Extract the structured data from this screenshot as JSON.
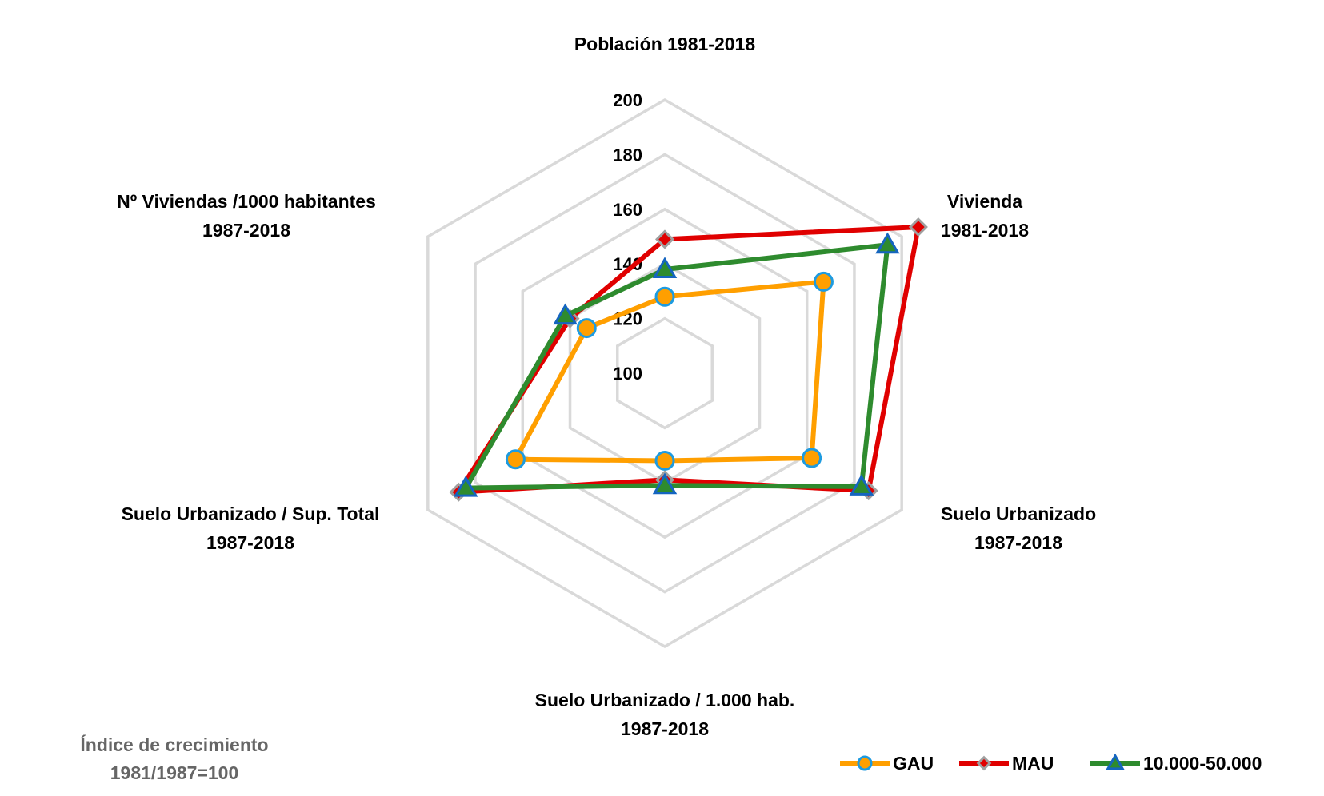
{
  "chart_data": {
    "type": "radar",
    "axes": [
      [
        "Población 1981-2018"
      ],
      [
        "Vivienda",
        "1981-2018"
      ],
      [
        "Suelo Urbanizado",
        "1987-2018"
      ],
      [
        "Suelo Urbanizado / 1.000 hab.",
        "1987-2018"
      ],
      [
        "Suelo Urbanizado / Sup. Total",
        "1987-2018"
      ],
      [
        "Nº Viviendas /1000 habitantes",
        "1987-2018"
      ]
    ],
    "rlim": [
      100,
      200
    ],
    "ticks": [
      "100",
      "120",
      "140",
      "160",
      "180",
      "200"
    ],
    "grid": true,
    "legend_position": "bottom-right",
    "series": [
      {
        "name": "GAU",
        "color": "#FF9F00",
        "marker": "circle",
        "marker_edge": "#1E9BE0",
        "values": [
          128,
          167,
          162,
          132,
          163,
          133
        ]
      },
      {
        "name": "MAU",
        "color": "#E00000",
        "marker": "diamond",
        "marker_edge": "#A0A0A0",
        "values": [
          149,
          207,
          186,
          139,
          187,
          140
        ]
      },
      {
        "name": "10.000-50.000",
        "color": "#2E8B2E",
        "marker": "triangle",
        "marker_edge": "#1565C0",
        "values": [
          138,
          194,
          183,
          141,
          184,
          142
        ]
      }
    ],
    "annotation": [
      "Índice de crecimiento",
      "1981/1987=100"
    ]
  }
}
